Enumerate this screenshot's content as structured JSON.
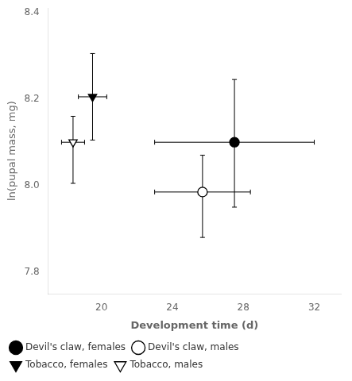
{
  "chart_data": {
    "type": "scatter",
    "xlabel": "Development time (d)",
    "ylabel": "ln(pupal mass, mg)",
    "xlim": [
      17.0,
      33.5
    ],
    "ylim": [
      7.75,
      8.41
    ],
    "xticks": [
      20,
      24,
      28,
      32
    ],
    "yticks": [
      7.8,
      {
        "value": 8.0,
        "label": "8.0"
      },
      8.2,
      8.4
    ],
    "grid": false,
    "legend": "lower left",
    "series": [
      {
        "name": "Devil's claw, females",
        "color": "black",
        "marker": "circle",
        "x": [
          27.5
        ],
        "values": [
          8.1
        ],
        "xerr_neg": [
          4.5
        ],
        "xerr_pos": [
          4.5
        ],
        "yerr_neg": [
          0.15
        ],
        "yerr_pos": [
          0.145
        ]
      },
      {
        "name": "Devil's claw, males",
        "color": "black",
        "marker": "circle_open",
        "x": [
          25.7
        ],
        "values": [
          7.985
        ],
        "xerr_neg": [
          2.7
        ],
        "xerr_pos": [
          2.7
        ],
        "yerr_neg": [
          0.105
        ],
        "yerr_pos": [
          0.085
        ]
      },
      {
        "name": "Tobacco, females",
        "color": "black",
        "marker": "triangle_down",
        "x": [
          19.5
        ],
        "values": [
          8.205
        ],
        "xerr_neg": [
          0.8
        ],
        "xerr_pos": [
          0.8
        ],
        "yerr_neg": [
          0.1
        ],
        "yerr_pos": [
          0.1
        ]
      },
      {
        "name": "Tobacco, males",
        "color": "black",
        "marker": "triangle_down_open",
        "x": [
          18.4
        ],
        "values": [
          8.1
        ],
        "xerr_neg": [
          0.65
        ],
        "xerr_pos": [
          0.65
        ],
        "yerr_neg": [
          0.095
        ],
        "yerr_pos": [
          0.06
        ]
      }
    ]
  }
}
